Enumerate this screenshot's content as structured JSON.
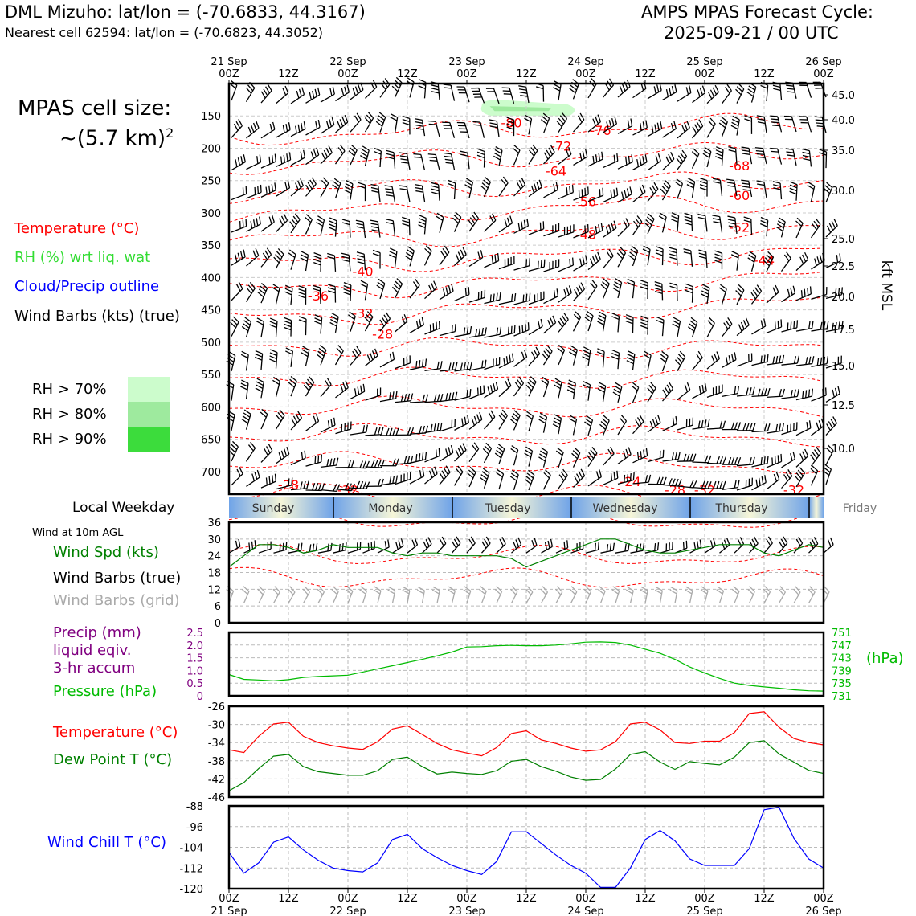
{
  "header": {
    "station_line": "DML Mizuho: lat/lon = (-70.6833, 44.3167)",
    "cell_line": "Nearest cell 62594: lat/lon = (-70.6823, 44.3052)",
    "model_line": "AMPS MPAS Forecast Cycle:",
    "cycle_line": "2025-09-21 / 00 UTC"
  },
  "cell_size": {
    "label": "MPAS cell size:",
    "value": "~(5.7 km)",
    "exponent": "2"
  },
  "legend": {
    "temperature": "Temperature (°C)",
    "rh": "RH (%) wrt liq. wat",
    "cloud": "Cloud/Precip outline",
    "barbs": "Wind Barbs (kts) (true)",
    "rh_levels": [
      {
        "label": "RH > 70%",
        "color": "#ccfccc"
      },
      {
        "label": "RH > 80%",
        "color": "#9eea9e"
      },
      {
        "label": "RH > 90%",
        "color": "#3cdc3c"
      }
    ]
  },
  "colors": {
    "temperature": "#ff0000",
    "rh_text": "#33dd33",
    "cloud": "#0000ff",
    "wind_speed": "#008000",
    "precip": "#800080",
    "pressure": "#00bb00",
    "dewpoint": "#008000",
    "windchill": "#0000ff",
    "grid_barbs": "#aaaaaa"
  },
  "time_axis": {
    "top_dates": [
      "21 Sep",
      "",
      "22 Sep",
      "",
      "23 Sep",
      "",
      "24 Sep",
      "",
      "25 Sep",
      "",
      "26 Sep"
    ],
    "hours": [
      "00Z",
      "12Z",
      "00Z",
      "12Z",
      "00Z",
      "12Z",
      "00Z",
      "12Z",
      "00Z",
      "12Z",
      "00Z"
    ],
    "bottom_dates": [
      "21 Sep",
      "",
      "22 Sep",
      "",
      "23 Sep",
      "",
      "24 Sep",
      "",
      "25 Sep",
      "",
      "26 Sep"
    ]
  },
  "weekday_strip": {
    "label": "Local Weekday",
    "days": [
      "Sunday",
      "Monday",
      "Tuesday",
      "Wednesday",
      "Thursday",
      "Friday"
    ]
  },
  "surface_labels": {
    "wind_note": "Wind at 10m AGL",
    "wind_speed": "Wind Spd (kts)",
    "wind_barbs_true": "Wind Barbs (true)",
    "wind_barbs_grid": "Wind Barbs (grid)",
    "precip_1": "Precip (mm)",
    "precip_2": "liquid eqiv.",
    "precip_3": "3-hr accum",
    "pressure": "Pressure (hPa)",
    "pressure_unit": "(hPa)",
    "temperature": "Temperature (°C)",
    "dewpoint": "Dew Point T (°C)",
    "windchill": "Wind Chill T (°C)"
  },
  "chart_data": [
    {
      "type": "heatmap",
      "panel": "upper-air cross-section",
      "y_left_ticks": [
        150,
        200,
        250,
        300,
        350,
        400,
        450,
        500,
        550,
        600,
        650,
        700
      ],
      "y_right_ticks": [
        "45.0",
        "40.0",
        "35.0",
        "30.0",
        "25.0",
        "22.5",
        "20.0",
        "17.5",
        "15.0",
        "12.5",
        "10.0"
      ],
      "y_right_label": "kft MSL",
      "ylim_hpa": [
        100,
        735
      ],
      "temperature_contour_labels": [
        {
          "text": "-80",
          "hour": 57,
          "p": 160
        },
        {
          "text": "-76",
          "hour": 75,
          "p": 172
        },
        {
          "text": "-72",
          "hour": 67,
          "p": 196
        },
        {
          "text": "-68",
          "hour": 103,
          "p": 227
        },
        {
          "text": "-64",
          "hour": 66,
          "p": 235
        },
        {
          "text": "-60",
          "hour": 103,
          "p": 273
        },
        {
          "text": "-56",
          "hour": 72,
          "p": 282
        },
        {
          "text": "-52",
          "hour": 103,
          "p": 322
        },
        {
          "text": "-48",
          "hour": 72,
          "p": 333
        },
        {
          "text": "-44",
          "hour": 108,
          "p": 373
        },
        {
          "text": "-40",
          "hour": 27,
          "p": 390
        },
        {
          "text": "-36",
          "hour": 18,
          "p": 428
        },
        {
          "text": "-32",
          "hour": 27,
          "p": 455
        },
        {
          "text": "-28",
          "hour": 31,
          "p": 487
        },
        {
          "text": "-28",
          "hour": 12,
          "p": 720
        },
        {
          "text": "-32",
          "hour": 24,
          "p": 728
        },
        {
          "text": "-24",
          "hour": 81,
          "p": 715
        },
        {
          "text": "-28",
          "hour": 90,
          "p": 728
        },
        {
          "text": "-32",
          "hour": 96,
          "p": 728
        },
        {
          "text": "-32",
          "hour": 114,
          "p": 728
        }
      ],
      "rh_region": {
        "start_hour": 48,
        "end_hour": 70,
        "p_top": 125,
        "p_bottom": 150,
        "level": "RH > 70%"
      }
    },
    {
      "type": "line",
      "panel": "10m wind speed",
      "x_hours": [
        0,
        3,
        6,
        9,
        12,
        15,
        18,
        21,
        24,
        27,
        30,
        33,
        36,
        39,
        42,
        45,
        48,
        51,
        54,
        57,
        60,
        63,
        66,
        69,
        72,
        75,
        78,
        81,
        84,
        87,
        90,
        93,
        96,
        99,
        102,
        105,
        108,
        111,
        114,
        117,
        120
      ],
      "series": [
        {
          "values": [
            20,
            24,
            28,
            28,
            27,
            25,
            26,
            28,
            27,
            27,
            27,
            25,
            24,
            25,
            25,
            24,
            24,
            24,
            24,
            23,
            20,
            22,
            24,
            26,
            28,
            30,
            30,
            28,
            26,
            25,
            25,
            26,
            27,
            28,
            28,
            28,
            25,
            24,
            26,
            28,
            27
          ]
        }
      ],
      "y_ticks": [
        0,
        6,
        12,
        18,
        24,
        30,
        36
      ],
      "ylim": [
        0,
        36
      ]
    },
    {
      "type": "line",
      "panel": "pressure and precip",
      "x_hours": [
        0,
        3,
        6,
        9,
        12,
        15,
        18,
        21,
        24,
        27,
        30,
        33,
        36,
        39,
        42,
        45,
        48,
        51,
        54,
        57,
        60,
        63,
        66,
        69,
        72,
        75,
        78,
        81,
        84,
        87,
        90,
        93,
        96,
        99,
        102,
        105,
        108,
        111,
        114,
        117,
        120
      ],
      "series": [
        {
          "values": [
            737.7,
            736.2,
            736.0,
            735.7,
            736.1,
            736.8,
            737.1,
            737.3,
            737.5,
            738.5,
            739.5,
            740.5,
            741.5,
            742.5,
            743.6,
            744.8,
            746.4,
            746.5,
            746.8,
            746.9,
            746.8,
            746.8,
            747.0,
            747.4,
            747.9,
            748.0,
            747.8,
            747.0,
            745.7,
            744.4,
            742.5,
            740.1,
            738.2,
            736.5,
            735.0,
            734.3,
            733.8,
            733.4,
            732.9,
            732.6,
            732.5
          ]
        }
      ],
      "y_left_ticks": [
        "0",
        "0.5",
        "1.0",
        "1.5",
        "2.0",
        "2.5"
      ],
      "y_right_ticks": [
        731,
        735,
        739,
        743,
        747,
        751
      ],
      "ylim_precip": [
        0,
        2.5
      ],
      "ylim_pressure": [
        731,
        751
      ]
    },
    {
      "type": "line",
      "panel": "temperature and dew point",
      "x_hours": [
        0,
        3,
        6,
        9,
        12,
        15,
        18,
        21,
        24,
        27,
        30,
        33,
        36,
        39,
        42,
        45,
        48,
        51,
        54,
        57,
        60,
        63,
        66,
        69,
        72,
        75,
        78,
        81,
        84,
        87,
        90,
        93,
        96,
        99,
        102,
        105,
        108,
        111,
        114,
        117,
        120
      ],
      "series": [
        {
          "values": [
            -35.6,
            -36.2,
            -32.6,
            -29.9,
            -29.5,
            -32.6,
            -34.0,
            -34.7,
            -35.2,
            -35.5,
            -33.8,
            -31.0,
            -30.3,
            -32.2,
            -34.2,
            -35.6,
            -36.3,
            -36.9,
            -35.1,
            -32.0,
            -31.4,
            -33.4,
            -34.2,
            -35.2,
            -35.9,
            -35.6,
            -33.8,
            -29.9,
            -29.5,
            -31.2,
            -34.0,
            -34.2,
            -33.7,
            -33.7,
            -31.8,
            -27.6,
            -27.2,
            -30.6,
            -33.1,
            -34.0,
            -34.5
          ]
        },
        {
          "values": [
            -44.6,
            -42.8,
            -39.7,
            -37.0,
            -36.6,
            -39.3,
            -40.4,
            -40.8,
            -41.2,
            -41.2,
            -40.2,
            -37.7,
            -37.2,
            -39.3,
            -40.9,
            -40.5,
            -40.8,
            -41.0,
            -40.2,
            -38.1,
            -37.7,
            -39.3,
            -40.3,
            -41.6,
            -42.3,
            -42.1,
            -39.8,
            -36.6,
            -36.0,
            -38.3,
            -39.9,
            -38.2,
            -38.6,
            -38.9,
            -37.2,
            -34.0,
            -33.6,
            -36.5,
            -38.3,
            -40.1,
            -40.8
          ]
        }
      ],
      "y_ticks": [
        -46,
        -42,
        -38,
        -34,
        -30,
        -26
      ],
      "ylim": [
        -46,
        -26
      ]
    },
    {
      "type": "line",
      "panel": "wind chill",
      "x_hours": [
        0,
        3,
        6,
        9,
        12,
        15,
        18,
        21,
        24,
        27,
        30,
        33,
        36,
        39,
        42,
        45,
        48,
        51,
        54,
        57,
        60,
        63,
        66,
        69,
        72,
        75,
        78,
        81,
        84,
        87,
        90,
        93,
        96,
        99,
        102,
        105,
        108,
        111,
        114,
        117,
        120
      ],
      "series": [
        {
          "values": [
            -106,
            -114,
            -110,
            -102,
            -100,
            -105,
            -109,
            -112,
            -113,
            -113.5,
            -110,
            -101,
            -99,
            -104.5,
            -108,
            -111,
            -113,
            -114.5,
            -109.5,
            -98,
            -98,
            -102.5,
            -107,
            -111,
            -114,
            -119.5,
            -119.5,
            -112,
            -101,
            -97.5,
            -101.5,
            -108.5,
            -111,
            -111,
            -111,
            -104.5,
            -89.5,
            -88.5,
            -100.5,
            -108.5,
            -112
          ]
        }
      ],
      "y_ticks": [
        -120,
        -112,
        -104,
        -96,
        -88
      ],
      "ylim": [
        -120,
        -88
      ]
    }
  ]
}
